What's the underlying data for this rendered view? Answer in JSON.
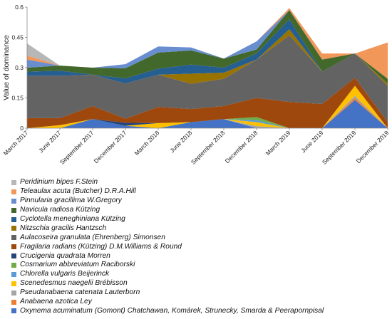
{
  "chart_data": {
    "type": "area",
    "stacked": true,
    "title": "",
    "ylabel": "Value of  dominance",
    "xlabel": "",
    "ylim": [
      0,
      0.6
    ],
    "yticks": [
      "0",
      "0.15",
      "0.3",
      "0.45",
      "0.6"
    ],
    "x": [
      "March 2017",
      "June 2017",
      "September 2017",
      "December 2017",
      "March 2018",
      "June 2018",
      "September 2018",
      "December 2018",
      "March 2019",
      "June 2019",
      "September 2019",
      "December 2019"
    ],
    "grid": false,
    "legend_position": "bottom",
    "series": [
      {
        "name": "Oxynema acuminatum (Gomont) Chatchawan, Komárek, Strunecky, Smarda & Peerapornpisal",
        "color": "#4472c4",
        "values": [
          0.0,
          0.0,
          0.045,
          0.012,
          0.0,
          0.03,
          0.045,
          0.0,
          0.0,
          0.0,
          0.14,
          0.0
        ]
      },
      {
        "name": "Anabaena azotica Ley",
        "color": "#ed7d31",
        "values": [
          0.0,
          0.0,
          0.0,
          0.0,
          0.0,
          0.0,
          0.0,
          0.0,
          0.0,
          0.0,
          0.01,
          0.0
        ]
      },
      {
        "name": "Pseudanabaena catenata Lauterborn",
        "color": "#a5a5a5",
        "values": [
          0.0,
          0.0,
          0.0,
          0.0,
          0.0,
          0.0,
          0.0,
          0.01,
          0.0,
          0.0,
          0.01,
          0.0
        ]
      },
      {
        "name": "Scenedesmus naegelii Brébisson",
        "color": "#ffc000",
        "values": [
          0.0,
          0.015,
          0.0,
          0.0,
          0.025,
          0.0,
          0.0,
          0.02,
          0.0,
          0.0,
          0.05,
          0.0
        ]
      },
      {
        "name": "Chlorella vulgaris Beijerinck",
        "color": "#5b9bd5",
        "values": [
          0.0,
          0.0,
          0.0,
          0.0,
          0.0,
          0.0,
          0.0,
          0.01,
          0.0,
          0.0,
          0.0,
          0.0
        ]
      },
      {
        "name": "Cosmarium abbreviatum Raciborski",
        "color": "#70ad47",
        "values": [
          0.0,
          0.0,
          0.0,
          0.0,
          0.0,
          0.0,
          0.0,
          0.015,
          0.0,
          0.0,
          0.0,
          0.0
        ]
      },
      {
        "name": "Crucigenia quadrata Morren",
        "color": "#264478",
        "values": [
          0.0,
          0.0,
          0.0,
          0.015,
          0.0,
          0.0,
          0.0,
          0.0,
          0.0,
          0.0,
          0.0,
          0.0
        ]
      },
      {
        "name": "Fragilaria radians (Kützing) D.M.Williams & Round",
        "color": "#9e480e",
        "values": [
          0.05,
          0.035,
          0.065,
          0.02,
          0.08,
          0.065,
          0.065,
          0.095,
          0.13,
          0.12,
          0.04,
          0.03
        ]
      },
      {
        "name": "Aulacoseira granulata (Ehrenberg) Simonsen",
        "color": "#636363",
        "values": [
          0.21,
          0.21,
          0.155,
          0.175,
          0.16,
          0.125,
          0.135,
          0.19,
          0.33,
          0.16,
          0.12,
          0.18
        ]
      },
      {
        "name": "Nitzschia gracilis Hantzsch",
        "color": "#997300",
        "values": [
          0.0,
          0.0,
          0.0,
          0.0,
          0.0,
          0.05,
          0.03,
          0.0,
          0.03,
          0.0,
          0.0,
          0.01
        ]
      },
      {
        "name": "Cyclotella meneghiniana Kützing",
        "color": "#255e91",
        "values": [
          0.02,
          0.025,
          0.0,
          0.025,
          0.03,
          0.045,
          0.025,
          0.03,
          0.05,
          0.0,
          0.0,
          0.0
        ]
      },
      {
        "name": "Navicula radiosa Kützing",
        "color": "#43682b",
        "values": [
          0.02,
          0.025,
          0.035,
          0.05,
          0.08,
          0.07,
          0.045,
          0.02,
          0.045,
          0.06,
          0.0,
          0.025
        ]
      },
      {
        "name": "Pinnularia gracillima W.Gregory",
        "color": "#698ed0",
        "values": [
          0.04,
          0.0,
          0.0,
          0.02,
          0.03,
          0.015,
          0.0,
          0.04,
          0.0,
          0.0,
          0.0,
          0.0
        ]
      },
      {
        "name": "Teleaulax acuta (Butcher) D.R.A.Hill",
        "color": "#f1975a",
        "values": [
          0.02,
          0.0,
          0.0,
          0.0,
          0.0,
          0.0,
          0.0,
          0.0,
          0.01,
          0.03,
          0.0,
          0.18
        ]
      },
      {
        "name": "Peridinium bipes F.Stein",
        "color": "#b7b7b7",
        "values": [
          0.06,
          0.0,
          0.0,
          0.0,
          0.0,
          0.0,
          0.0,
          0.0,
          0.0,
          0.0,
          0.0,
          0.0
        ]
      }
    ]
  }
}
